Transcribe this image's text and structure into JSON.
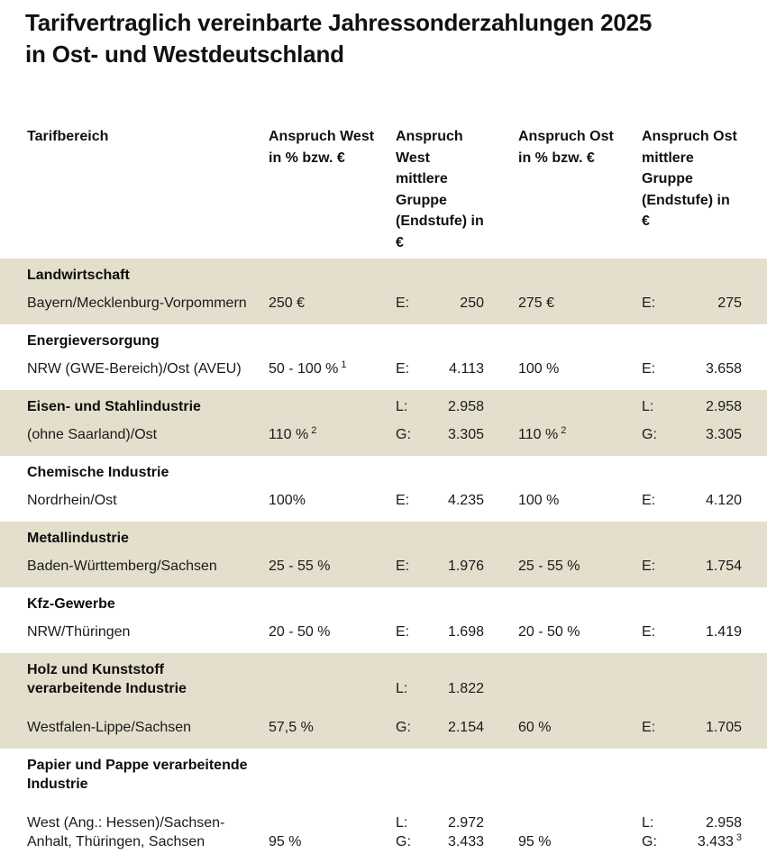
{
  "page": {
    "title_line1": "Tarifvertraglich vereinbarte Jahressonderzahlungen 2025",
    "title_line2": "in Ost- und Westdeutschland"
  },
  "colors": {
    "row_shade": "#e4dfcc",
    "text": "#1a1a1a"
  },
  "table": {
    "columns": [
      {
        "id": "tarifbereich",
        "label_lines": [
          "Tarifbereich"
        ]
      },
      {
        "id": "west_pct",
        "label_lines": [
          "Anspruch West",
          "in % bzw. €"
        ]
      },
      {
        "id": "west_group",
        "label_lines": [
          "Anspruch West",
          "mittlere Gruppe",
          "(Endstufe) in €"
        ]
      },
      {
        "id": "ost_pct",
        "label_lines": [
          "Anspruch Ost",
          "in % bzw. €"
        ]
      },
      {
        "id": "ost_group",
        "label_lines": [
          "Anspruch Ost",
          "mittlere Gruppe",
          "(Endstufe) in €"
        ]
      }
    ],
    "rows": [
      {
        "type": "section",
        "shaded": true,
        "name_lines": [
          "Landwirtschaft"
        ],
        "west_pct": [],
        "west_group": [],
        "ost_pct": [],
        "ost_group": []
      },
      {
        "type": "data",
        "shaded": true,
        "name_lines": [
          "Bayern/Mecklenburg-Vorpommern"
        ],
        "west_pct": [
          {
            "text": "250 €"
          }
        ],
        "west_group": [
          {
            "label": "E:",
            "value": "250"
          }
        ],
        "ost_pct": [
          {
            "text": "275 €"
          }
        ],
        "ost_group": [
          {
            "label": "E:",
            "value": "275"
          }
        ]
      },
      {
        "type": "section",
        "shaded": false,
        "name_lines": [
          "Energieversorgung"
        ],
        "west_pct": [],
        "west_group": [],
        "ost_pct": [],
        "ost_group": []
      },
      {
        "type": "data",
        "shaded": false,
        "name_lines": [
          "NRW (GWE-Bereich)/Ost (AVEU)"
        ],
        "west_pct": [
          {
            "text": "50 - 100 %",
            "sup": "1"
          }
        ],
        "west_group": [
          {
            "label": "E:",
            "value": "4.113"
          }
        ],
        "ost_pct": [
          {
            "text": "100 %"
          }
        ],
        "ost_group": [
          {
            "label": "E:",
            "value": "3.658"
          }
        ]
      },
      {
        "type": "section",
        "shaded": true,
        "name_lines": [
          "Eisen- und Stahlindustrie"
        ],
        "west_pct": [],
        "west_group": [
          {
            "label": "L:",
            "value": "2.958"
          }
        ],
        "ost_pct": [],
        "ost_group": [
          {
            "label": "L:",
            "value": "2.958"
          }
        ]
      },
      {
        "type": "data",
        "shaded": true,
        "name_lines": [
          "(ohne Saarland)/Ost"
        ],
        "west_pct": [
          {
            "text": "110 %",
            "sup": "2"
          }
        ],
        "west_group": [
          {
            "label": "G:",
            "value": "3.305"
          }
        ],
        "ost_pct": [
          {
            "text": "110 %",
            "sup": "2"
          }
        ],
        "ost_group": [
          {
            "label": "G:",
            "value": "3.305"
          }
        ]
      },
      {
        "type": "section",
        "shaded": false,
        "name_lines": [
          "Chemische Industrie"
        ],
        "west_pct": [],
        "west_group": [],
        "ost_pct": [],
        "ost_group": []
      },
      {
        "type": "data",
        "shaded": false,
        "name_lines": [
          "Nordrhein/Ost"
        ],
        "west_pct": [
          {
            "text": "100%"
          }
        ],
        "west_group": [
          {
            "label": "E:",
            "value": "4.235"
          }
        ],
        "ost_pct": [
          {
            "text": "100 %"
          }
        ],
        "ost_group": [
          {
            "label": "E:",
            "value": "4.120"
          }
        ]
      },
      {
        "type": "section",
        "shaded": true,
        "name_lines": [
          "Metallindustrie"
        ],
        "west_pct": [],
        "west_group": [],
        "ost_pct": [],
        "ost_group": []
      },
      {
        "type": "data",
        "shaded": true,
        "name_lines": [
          "Baden-Württemberg/Sachsen"
        ],
        "west_pct": [
          {
            "text": "25 - 55 %"
          }
        ],
        "west_group": [
          {
            "label": "E:",
            "value": "1.976"
          }
        ],
        "ost_pct": [
          {
            "text": "25 - 55 %"
          }
        ],
        "ost_group": [
          {
            "label": "E:",
            "value": "1.754"
          }
        ]
      },
      {
        "type": "section",
        "shaded": false,
        "name_lines": [
          "Kfz-Gewerbe"
        ],
        "west_pct": [],
        "west_group": [],
        "ost_pct": [],
        "ost_group": []
      },
      {
        "type": "data",
        "shaded": false,
        "name_lines": [
          "NRW/Thüringen"
        ],
        "west_pct": [
          {
            "text": "20 - 50 %"
          }
        ],
        "west_group": [
          {
            "label": "E:",
            "value": "1.698"
          }
        ],
        "ost_pct": [
          {
            "text": "20 - 50 %"
          }
        ],
        "ost_group": [
          {
            "label": "E:",
            "value": "1.419"
          }
        ]
      },
      {
        "type": "section",
        "shaded": true,
        "name_lines": [
          "Holz und Kunststoff",
          "verarbeitende Industrie"
        ],
        "west_pct": [],
        "west_group": [
          {
            "label": "",
            "value": ""
          },
          {
            "label": "L:",
            "value": "1.822"
          }
        ],
        "ost_pct": [],
        "ost_group": []
      },
      {
        "type": "data",
        "shaded": true,
        "extra_gap": true,
        "name_lines": [
          "Westfalen-Lippe/Sachsen"
        ],
        "west_pct": [
          {
            "text": "57,5 %"
          }
        ],
        "west_group": [
          {
            "label": "G:",
            "value": "2.154"
          }
        ],
        "ost_pct": [
          {
            "text": "60 %"
          }
        ],
        "ost_group": [
          {
            "label": "E:",
            "value": "1.705"
          }
        ]
      },
      {
        "type": "section",
        "shaded": false,
        "name_lines": [
          "Papier und Pappe verarbeitende",
          "Industrie"
        ],
        "west_pct": [],
        "west_group": [],
        "ost_pct": [],
        "ost_group": []
      },
      {
        "type": "data",
        "shaded": false,
        "extra_gap": true,
        "name_lines": [
          "West (Ang.: Hessen)/Sachsen-",
          "Anhalt, Thüringen, Sachsen"
        ],
        "west_pct": [
          {
            "text": ""
          },
          {
            "text": "95 %"
          }
        ],
        "west_group": [
          {
            "label": "L:",
            "value": "2.972"
          },
          {
            "label": "G:",
            "value": "3.433"
          }
        ],
        "ost_pct": [
          {
            "text": ""
          },
          {
            "text": "95 %"
          }
        ],
        "ost_group": [
          {
            "label": "L:",
            "value": "2.958"
          },
          {
            "label": "G:",
            "value": "3.433",
            "sup": "3"
          }
        ]
      }
    ]
  }
}
